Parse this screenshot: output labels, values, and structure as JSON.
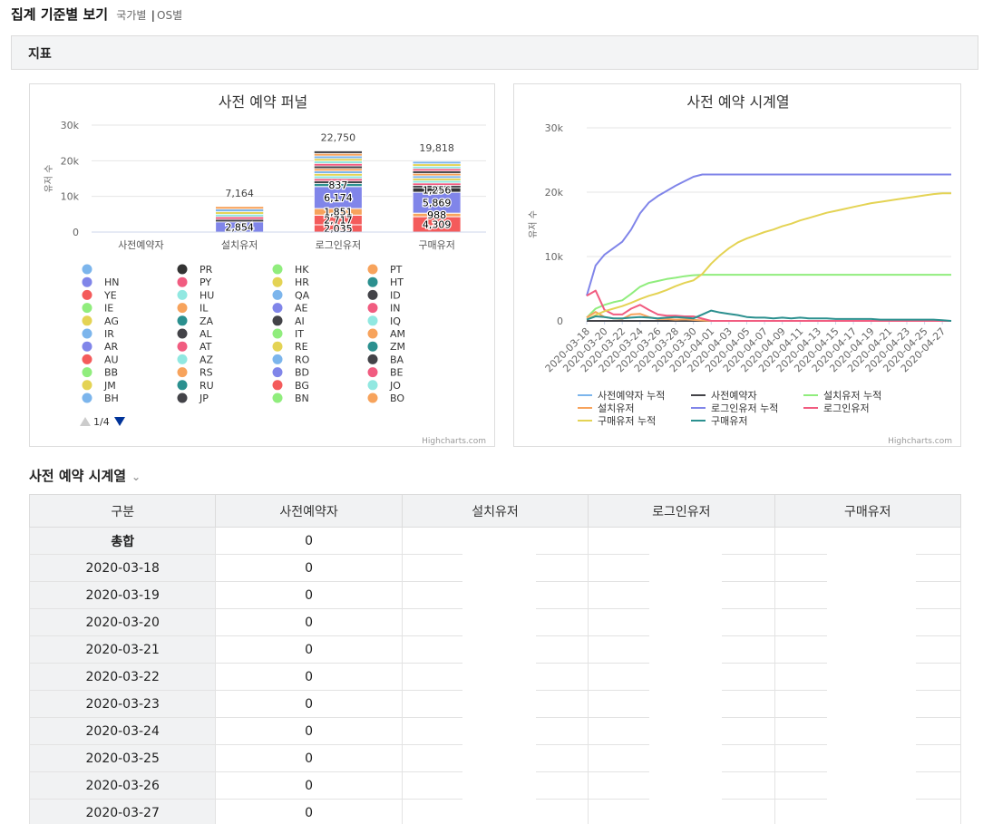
{
  "header": {
    "title": "집계 기준별 보기",
    "link_country": "국가별",
    "separator": "|",
    "link_os": "OS별"
  },
  "section": {
    "title": "지표"
  },
  "funnel_chart": {
    "credits": "Highcharts.com",
    "legend_page": "1/4",
    "legend_items": [
      "",
      "PR",
      "HK",
      "PT",
      "HN",
      "PY",
      "HR",
      "HT",
      "YE",
      "HU",
      "QA",
      "ID",
      "IE",
      "IL",
      "AE",
      "IN",
      "AG",
      "ZA",
      "AI",
      "IQ",
      "IR",
      "AL",
      "IT",
      "AM",
      "AR",
      "AT",
      "RE",
      "ZM",
      "AU",
      "AZ",
      "RO",
      "BA",
      "BB",
      "RS",
      "BD",
      "BE",
      "JM",
      "RU",
      "BG",
      "JO",
      "BH",
      "JP",
      "BN",
      "BO"
    ],
    "legend_colors": [
      "#7cb5ec",
      "#333333",
      "#90ed7d",
      "#f7a35c",
      "#8085e9",
      "#f15c80",
      "#e4d354",
      "#2b908f",
      "#f45b5b",
      "#91e8e1",
      "#7cb5ec",
      "#434348",
      "#90ed7d",
      "#f7a35c",
      "#8085e9",
      "#f15c80",
      "#e4d354",
      "#2b908f",
      "#434348",
      "#91e8e1",
      "#7cb5ec",
      "#434348",
      "#90ed7d",
      "#f7a35c",
      "#8085e9",
      "#f15c80",
      "#e4d354",
      "#2b908f",
      "#f45b5b",
      "#91e8e1",
      "#7cb5ec",
      "#434348",
      "#90ed7d",
      "#f7a35c",
      "#8085e9",
      "#f15c80",
      "#e4d354",
      "#2b908f",
      "#f45b5b",
      "#91e8e1",
      "#7cb5ec",
      "#434348",
      "#90ed7d",
      "#f7a35c"
    ]
  },
  "series_chart": {
    "credits": "Highcharts.com",
    "legend_colors": [
      "#7cb5ec",
      "#434348",
      "#90ed7d",
      "#f7a35c",
      "#8085e9",
      "#f15c80",
      "#e4d354",
      "#2b908f"
    ]
  },
  "chart_data": [
    {
      "type": "bar",
      "title": "사전 예약 퍼널",
      "ylabel": "유저 수",
      "ylim": [
        0,
        30000
      ],
      "yticks": [
        "0",
        "10k",
        "20k",
        "30k"
      ],
      "categories": [
        "사전예약자",
        "설치유저",
        "로그인유저",
        "구매유저"
      ],
      "totals": [
        null,
        7164,
        22750,
        19818
      ],
      "total_labels": [
        "",
        "7,164",
        "22,750",
        "19,818"
      ],
      "segment_labels": {
        "설치유저": [
          "2,854"
        ],
        "로그인유저": [
          "837",
          "6,174",
          "1,851",
          "2,717",
          "2,035"
        ],
        "구매유저": [
          "1,256",
          "5,869",
          "988",
          "4,309"
        ]
      },
      "segments": {
        "설치유저": [
          {
            "value": 2854,
            "color": "#8085e9"
          },
          {
            "value": 4310,
            "color": "#mixed"
          }
        ],
        "로그인유저": [
          {
            "value": 2035,
            "color": "#f45b5b"
          },
          {
            "value": 2717,
            "color": "#f45b5b"
          },
          {
            "value": 1851,
            "color": "#f7a35c"
          },
          {
            "value": 6174,
            "color": "#8085e9"
          },
          {
            "value": 837,
            "color": "#2b908f"
          },
          {
            "value": 9136,
            "color": "#mixed"
          }
        ],
        "구매유저": [
          {
            "value": 4309,
            "color": "#f45b5b"
          },
          {
            "value": 988,
            "color": "#f7a35c"
          },
          {
            "value": 5869,
            "color": "#8085e9"
          },
          {
            "value": 1256,
            "color": "#333333"
          },
          {
            "value": 7396,
            "color": "#mixed"
          }
        ]
      }
    },
    {
      "type": "line",
      "title": "사전 예약 시계열",
      "ylabel": "유저 수",
      "ylim": [
        0,
        30000
      ],
      "yticks": [
        "0",
        "10k",
        "20k",
        "30k"
      ],
      "x": [
        "2020-03-18",
        "2020-03-19",
        "2020-03-20",
        "2020-03-21",
        "2020-03-22",
        "2020-03-23",
        "2020-03-24",
        "2020-03-25",
        "2020-03-26",
        "2020-03-27",
        "2020-03-28",
        "2020-03-29",
        "2020-03-30",
        "2020-03-31",
        "2020-04-01",
        "2020-04-02",
        "2020-04-03",
        "2020-04-04",
        "2020-04-05",
        "2020-04-06",
        "2020-04-07",
        "2020-04-08",
        "2020-04-09",
        "2020-04-10",
        "2020-04-11",
        "2020-04-12",
        "2020-04-13",
        "2020-04-14",
        "2020-04-15",
        "2020-04-16",
        "2020-04-17",
        "2020-04-18",
        "2020-04-19",
        "2020-04-20",
        "2020-04-21",
        "2020-04-22",
        "2020-04-23",
        "2020-04-24",
        "2020-04-25",
        "2020-04-26",
        "2020-04-27",
        "2020-04-28"
      ],
      "xtick_labels": [
        "2020-03-18",
        "2020-03-20",
        "2020-03-22",
        "2020-03-24",
        "2020-03-26",
        "2020-03-28",
        "2020-03-30",
        "2020-04-01",
        "2020-04-03",
        "2020-04-05",
        "2020-04-07",
        "2020-04-09",
        "2020-04-11",
        "2020-04-13",
        "2020-04-15",
        "2020-04-17",
        "2020-04-19",
        "2020-04-21",
        "2020-04-23",
        "2020-04-25",
        "2020-04-27"
      ],
      "series": [
        {
          "name": "사전예약자 누적",
          "color": "#7cb5ec",
          "values": [
            0,
            0,
            0,
            0,
            0,
            0,
            0,
            0,
            0,
            0,
            0,
            0,
            0,
            0,
            0,
            0,
            0,
            0,
            0,
            0,
            0,
            0,
            0,
            0,
            0,
            0,
            0,
            0,
            0,
            0,
            0,
            0,
            0,
            0,
            0,
            0,
            0,
            0,
            0,
            0,
            0,
            0
          ]
        },
        {
          "name": "사전예약자",
          "color": "#434348",
          "values": [
            0,
            0,
            0,
            0,
            0,
            0,
            0,
            0,
            0,
            0,
            0,
            0,
            0,
            0,
            0,
            0,
            0,
            0,
            0,
            0,
            0,
            0,
            0,
            0,
            0,
            0,
            0,
            0,
            0,
            0,
            0,
            0,
            0,
            0,
            0,
            0,
            0,
            0,
            0,
            0,
            0,
            0
          ]
        },
        {
          "name": "설치유저 누적",
          "color": "#90ed7d",
          "values": [
            500,
            1900,
            2500,
            2900,
            3200,
            4200,
            5300,
            5900,
            6200,
            6500,
            6700,
            6950,
            7100,
            7164,
            7164,
            7164,
            7164,
            7164,
            7164,
            7164,
            7164,
            7164,
            7164,
            7164,
            7164,
            7164,
            7164,
            7164,
            7164,
            7164,
            7164,
            7164,
            7164,
            7164,
            7164,
            7164,
            7164,
            7164,
            7164,
            7164,
            7164,
            7164
          ]
        },
        {
          "name": "설치유저",
          "color": "#f7a35c",
          "values": [
            500,
            1400,
            600,
            400,
            300,
            1000,
            1100,
            600,
            300,
            300,
            200,
            250,
            150,
            64,
            0,
            0,
            0,
            0,
            0,
            0,
            0,
            0,
            0,
            0,
            0,
            0,
            0,
            0,
            0,
            0,
            0,
            0,
            0,
            0,
            0,
            0,
            0,
            0,
            0,
            0,
            0,
            0
          ]
        },
        {
          "name": "로그인유저 누적",
          "color": "#8085e9",
          "values": [
            3900,
            8600,
            10300,
            11300,
            12300,
            14200,
            16700,
            18400,
            19400,
            20200,
            21000,
            21700,
            22400,
            22750,
            22750,
            22750,
            22750,
            22750,
            22750,
            22750,
            22750,
            22750,
            22750,
            22750,
            22750,
            22750,
            22750,
            22750,
            22750,
            22750,
            22750,
            22750,
            22750,
            22750,
            22750,
            22750,
            22750,
            22750,
            22750,
            22750,
            22750,
            22750
          ]
        },
        {
          "name": "로그인유저",
          "color": "#f15c80",
          "values": [
            3900,
            4700,
            1700,
            1000,
            1000,
            1900,
            2500,
            1700,
            1000,
            800,
            800,
            700,
            700,
            350,
            0,
            0,
            0,
            0,
            0,
            0,
            0,
            0,
            0,
            0,
            0,
            0,
            0,
            0,
            0,
            0,
            0,
            0,
            0,
            0,
            0,
            0,
            0,
            0,
            0,
            0,
            0,
            0
          ]
        },
        {
          "name": "구매유저 누적",
          "color": "#e4d354",
          "values": [
            200,
            900,
            1500,
            1900,
            2300,
            2800,
            3400,
            3900,
            4300,
            4800,
            5400,
            5900,
            6300,
            7300,
            8900,
            10200,
            11300,
            12200,
            12800,
            13300,
            13800,
            14200,
            14700,
            15100,
            15600,
            16000,
            16400,
            16800,
            17100,
            17400,
            17700,
            18000,
            18300,
            18500,
            18700,
            18900,
            19100,
            19300,
            19500,
            19700,
            19818,
            19818
          ]
        },
        {
          "name": "구매유저",
          "color": "#2b908f",
          "values": [
            200,
            700,
            600,
            400,
            400,
            500,
            600,
            500,
            400,
            500,
            600,
            500,
            400,
            1000,
            1600,
            1300,
            1100,
            900,
            600,
            500,
            500,
            400,
            500,
            400,
            500,
            400,
            400,
            400,
            300,
            300,
            300,
            300,
            300,
            200,
            200,
            200,
            200,
            200,
            200,
            200,
            118,
            0
          ]
        }
      ]
    }
  ],
  "table_section": {
    "title": "사전 예약 시계열",
    "chevron": "⌄"
  },
  "table": {
    "headers": [
      "구분",
      "사전예약자",
      "설치유저",
      "로그인유저",
      "구매유저"
    ],
    "rows": [
      {
        "label": "총합",
        "pre": "0"
      },
      {
        "label": "2020-03-18",
        "pre": "0"
      },
      {
        "label": "2020-03-19",
        "pre": "0"
      },
      {
        "label": "2020-03-20",
        "pre": "0"
      },
      {
        "label": "2020-03-21",
        "pre": "0"
      },
      {
        "label": "2020-03-22",
        "pre": "0"
      },
      {
        "label": "2020-03-23",
        "pre": "0"
      },
      {
        "label": "2020-03-24",
        "pre": "0"
      },
      {
        "label": "2020-03-25",
        "pre": "0"
      },
      {
        "label": "2020-03-26",
        "pre": "0"
      },
      {
        "label": "2020-03-27",
        "pre": "0"
      }
    ]
  }
}
